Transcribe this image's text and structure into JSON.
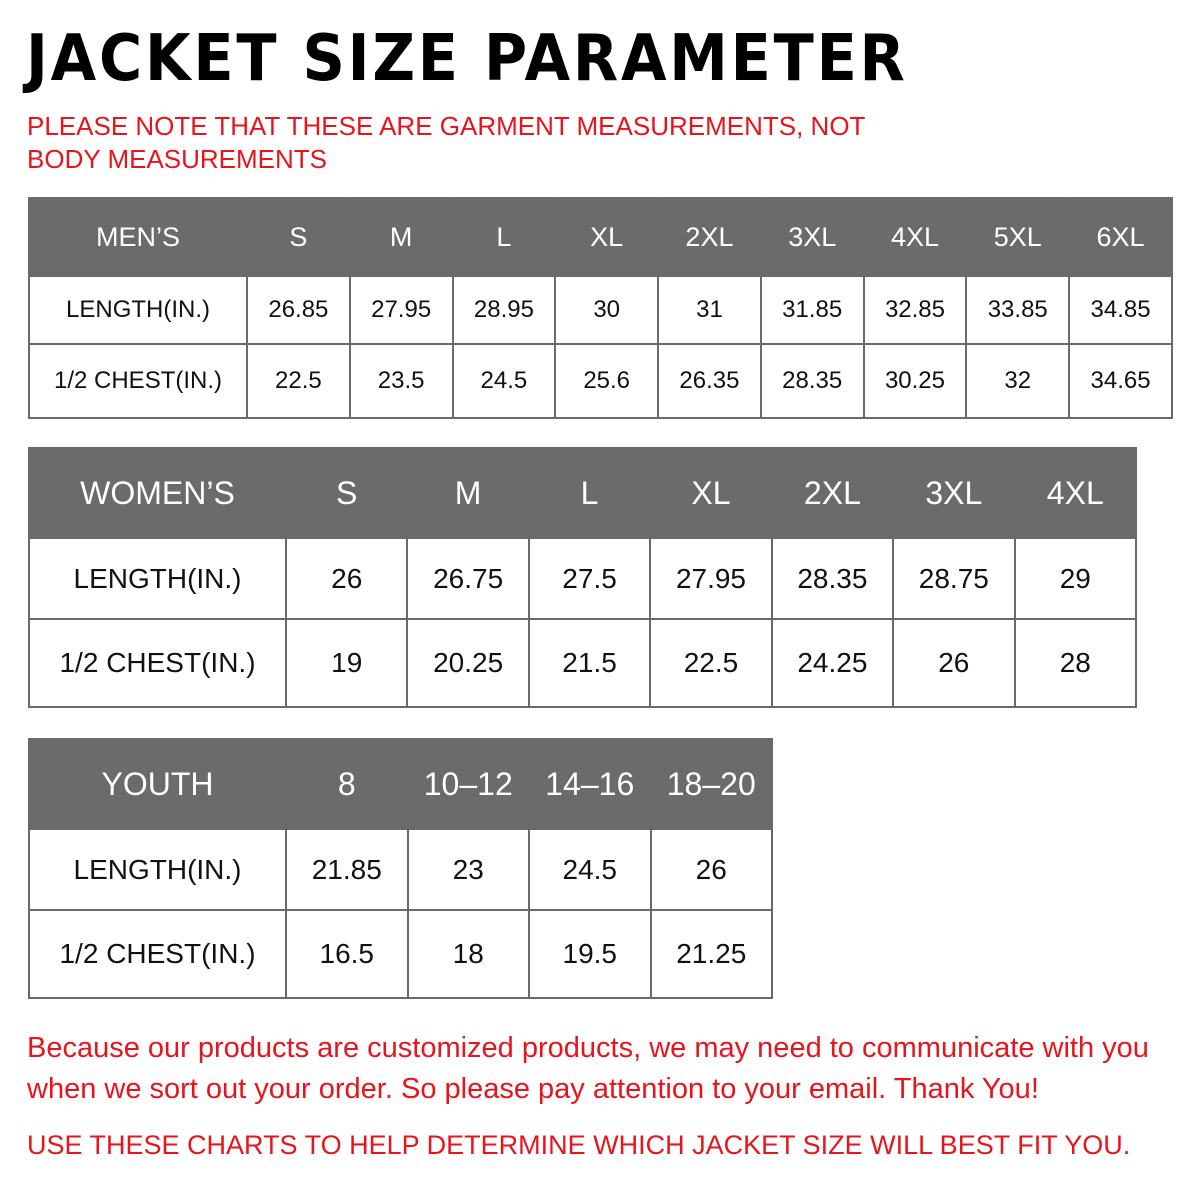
{
  "title": "JACKET SIZE PARAMETER",
  "note": "PLEASE NOTE THAT THESE ARE GARMENT MEASUREMENTS, NOT BODY MEASUREMENTS",
  "colors": {
    "header_bg": "#6b6b6b",
    "accent_red": "#e8141c"
  },
  "tables": {
    "mens": {
      "headers": [
        "MEN’S",
        "S",
        "M",
        "L",
        "XL",
        "2XL",
        "3XL",
        "4XL",
        "5XL",
        "6XL"
      ],
      "rows": [
        [
          "LENGTH(IN.)",
          "26.85",
          "27.95",
          "28.95",
          "30",
          "31",
          "31.85",
          "32.85",
          "33.85",
          "34.85"
        ],
        [
          "1/2 CHEST(IN.)",
          "22.5",
          "23.5",
          "24.5",
          "25.6",
          "26.35",
          "28.35",
          "30.25",
          "32",
          "34.65"
        ]
      ]
    },
    "womens": {
      "headers": [
        "WOMEN’S",
        "S",
        "M",
        "L",
        "XL",
        "2XL",
        "3XL",
        "4XL"
      ],
      "rows": [
        [
          "LENGTH(IN.)",
          "26",
          "26.75",
          "27.5",
          "27.95",
          "28.35",
          "28.75",
          "29"
        ],
        [
          "1/2 CHEST(IN.)",
          "19",
          "20.25",
          "21.5",
          "22.5",
          "24.25",
          "26",
          "28"
        ]
      ]
    },
    "youth": {
      "headers": [
        "YOUTH",
        "8",
        "10–12",
        "14–16",
        "18–20"
      ],
      "rows": [
        [
          "LENGTH(IN.)",
          "21.85",
          "23",
          "24.5",
          "26"
        ],
        [
          "1/2 CHEST(IN.)",
          "16.5",
          "18",
          "19.5",
          "21.25"
        ]
      ]
    }
  },
  "footer": {
    "message": "Because our products are customized products, we may need to communicate with you when we sort out your order. So please pay attention to your email. Thank You!",
    "tip": "USE THESE CHARTS TO HELP DETERMINE WHICH JACKET SIZE WILL BEST FIT YOU."
  }
}
